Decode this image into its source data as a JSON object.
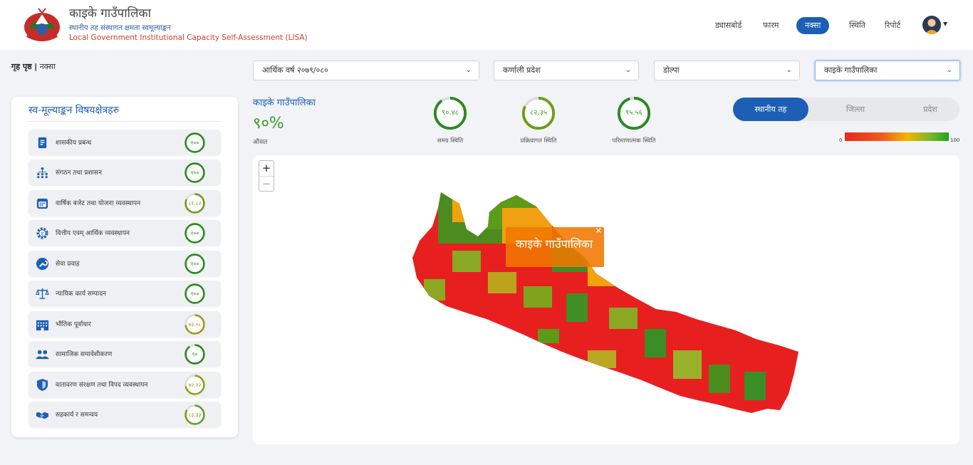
{
  "header": {
    "title": "काइके गाउँपालिका",
    "subtitle_np": "स्थानीय तह संस्थागत क्षमता स्वमूल्याङ्कन",
    "subtitle_en": "Local Government Institutional Capacity Self-Assessment (LISA)",
    "nav": [
      "ड्यासबोर्ड",
      "फारम",
      "नक्सा",
      "स्थिति",
      "रिपोर्ट"
    ],
    "active_nav": "नक्सा"
  },
  "breadcrumb": {
    "home": "गृह पृष्ठ",
    "separator": "|",
    "current": "नक्सा"
  },
  "filters": {
    "fiscal_year": "आर्थिक वर्ष २०७९/०८०",
    "province": "कर्णाली प्रदेश",
    "district": "डोल्पा",
    "municipality": "काइके गाउँपालिका"
  },
  "panel": {
    "title": "स्व-मूल्याङ्कन विषयक्षेत्रहरु",
    "items": [
      {
        "label": "शासकीय प्रबन्ध",
        "value": "१००",
        "pct": 100,
        "icon": "document-icon"
      },
      {
        "label": "संगठन तथा प्रशासन",
        "value": "१००",
        "pct": 100,
        "icon": "org-chart-icon"
      },
      {
        "label": "वार्षिक बजेट तथा योजना व्यवस्थापन",
        "value": "८१.८२",
        "pct": 81.82,
        "icon": "calendar-icon"
      },
      {
        "label": "वित्तीय एवम् आर्थिक व्यवस्थापन",
        "value": "१००",
        "pct": 100,
        "icon": "money-gear-icon"
      },
      {
        "label": "सेवा प्रवाह",
        "value": "१००",
        "pct": 100,
        "icon": "wrench-icon"
      },
      {
        "label": "न्यायिक कार्य सम्पादन",
        "value": "१००",
        "pct": 100,
        "icon": "scale-icon"
      },
      {
        "label": "भौतिक पूर्वाधार",
        "value": "७३.०८",
        "pct": 73.08,
        "icon": "building-icon"
      },
      {
        "label": "सामाजिक समावेशीकरण",
        "value": "९०",
        "pct": 90,
        "icon": "people-icon"
      },
      {
        "label": "वातावरण संरक्षण तथा विपद व्यवस्थापन",
        "value": "७२.२२",
        "pct": 72.22,
        "icon": "shield-icon"
      },
      {
        "label": "सहकार्य र समन्वय",
        "value": "८३.३३",
        "pct": 83.33,
        "icon": "handshake-icon"
      }
    ]
  },
  "summary": {
    "name": "काइके गाउँपालिका",
    "percent": "९०%",
    "percent_label": "औसत",
    "scores": [
      {
        "value": "९०.४८",
        "pct": 90.48,
        "label": "समग्र स्थिति"
      },
      {
        "value": "८२.३५",
        "pct": 82.35,
        "label": "प्रक्रियागत स्थिति"
      },
      {
        "value": "९५.५६",
        "pct": 95.56,
        "label": "परिमाणात्मक स्थिति"
      }
    ]
  },
  "toggle": {
    "options": [
      "स्थानीय तह",
      "जिल्ला",
      "प्रदेश"
    ],
    "selected": "स्थानीय तह"
  },
  "legend": {
    "min": "0",
    "max": "100"
  },
  "map": {
    "zoom_in": "+",
    "zoom_out": "−",
    "tooltip": "काइके गाउँपालिका",
    "tooltip_close": "×"
  },
  "colors": {
    "accent": "#1c5fb4",
    "good": "#2b8a1f",
    "bad": "#e8291d",
    "mid": "#f3b400"
  }
}
